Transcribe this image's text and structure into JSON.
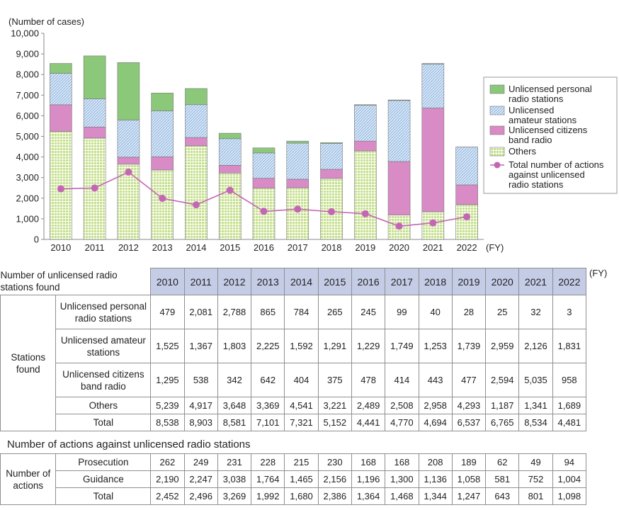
{
  "chart_data": {
    "type": "bar",
    "stacked": true,
    "unit_label": "(Number of cases)",
    "x_unit_label": "(FY)",
    "categories": [
      "2010",
      "2011",
      "2012",
      "2013",
      "2014",
      "2015",
      "2016",
      "2017",
      "2018",
      "2019",
      "2020",
      "2021",
      "2022"
    ],
    "ylim": [
      0,
      10000
    ],
    "yticks": [
      0,
      1000,
      2000,
      3000,
      4000,
      5000,
      6000,
      7000,
      8000,
      9000,
      10000
    ],
    "ytick_labels": [
      "0",
      "1,000",
      "2,000",
      "3,000",
      "4,000",
      "5,000",
      "6,000",
      "7,000",
      "8,000",
      "9,000",
      "10,000"
    ],
    "grid": false,
    "legend_position": "right",
    "series": [
      {
        "name": "Others",
        "key": "others",
        "color": "#c6e08e",
        "values": [
          5239,
          4917,
          3648,
          3369,
          4541,
          3221,
          2489,
          2508,
          2958,
          4293,
          1187,
          1341,
          1689
        ]
      },
      {
        "name": "Unlicensed citizens band radio",
        "key": "cb",
        "color": "#d88bc5",
        "values": [
          1295,
          538,
          342,
          642,
          404,
          375,
          478,
          414,
          443,
          477,
          2594,
          5035,
          958
        ]
      },
      {
        "name": "Unlicensed amateur stations",
        "key": "amateur",
        "color": "#cfe2f6",
        "values": [
          1525,
          1367,
          1803,
          2225,
          1592,
          1291,
          1229,
          1749,
          1253,
          1739,
          2959,
          2126,
          1831
        ]
      },
      {
        "name": "Unlicensed personal radio stations",
        "key": "personal",
        "color": "#8bc87a",
        "values": [
          479,
          2081,
          2788,
          865,
          784,
          265,
          245,
          99,
          40,
          28,
          25,
          32,
          3
        ]
      }
    ],
    "line_series": {
      "name": "Total number of actions against unlicensed radio stations",
      "color": "#c466b4",
      "values": [
        2452,
        2496,
        3269,
        1992,
        1680,
        2386,
        1364,
        1468,
        1344,
        1247,
        643,
        801,
        1098
      ]
    },
    "legend_order": [
      "personal",
      "amateur",
      "cb",
      "others",
      "line"
    ],
    "legend_labels": {
      "personal": [
        "Unlicensed personal",
        "radio stations"
      ],
      "amateur": [
        "Unlicensed",
        "amateur stations"
      ],
      "cb": [
        "Unlicensed citizens",
        "band radio"
      ],
      "others": [
        "Others"
      ],
      "line": [
        "Total number of actions",
        "against unlicensed",
        "radio stations"
      ]
    }
  },
  "table1": {
    "corner_label": "Number of unlicensed radio stations found",
    "unit": "(FY)",
    "years": [
      "2010",
      "2011",
      "2012",
      "2013",
      "2014",
      "2015",
      "2016",
      "2017",
      "2018",
      "2019",
      "2020",
      "2021",
      "2022"
    ],
    "group_label": "Stations found",
    "rows": [
      {
        "label": "Unlicensed personal radio stations",
        "values": [
          "479",
          "2,081",
          "2,788",
          "865",
          "784",
          "265",
          "245",
          "99",
          "40",
          "28",
          "25",
          "32",
          "3"
        ]
      },
      {
        "label": "Unlicensed amateur stations",
        "values": [
          "1,525",
          "1,367",
          "1,803",
          "2,225",
          "1,592",
          "1,291",
          "1,229",
          "1,749",
          "1,253",
          "1,739",
          "2,959",
          "2,126",
          "1,831"
        ]
      },
      {
        "label": "Unlicensed citizens band radio",
        "values": [
          "1,295",
          "538",
          "342",
          "642",
          "404",
          "375",
          "478",
          "414",
          "443",
          "477",
          "2,594",
          "5,035",
          "958"
        ]
      },
      {
        "label": "Others",
        "values": [
          "5,239",
          "4,917",
          "3,648",
          "3,369",
          "4,541",
          "3,221",
          "2,489",
          "2,508",
          "2,958",
          "4,293",
          "1,187",
          "1,341",
          "1,689"
        ]
      },
      {
        "label": "Total",
        "values": [
          "8,538",
          "8,903",
          "8,581",
          "7,101",
          "7,321",
          "5,152",
          "4,441",
          "4,770",
          "4,694",
          "6,537",
          "6,765",
          "8,534",
          "4,481"
        ]
      }
    ]
  },
  "table2": {
    "title": "Number of actions against unlicensed radio stations",
    "group_label": "Number of actions",
    "rows": [
      {
        "label": "Prosecution",
        "values": [
          "262",
          "249",
          "231",
          "228",
          "215",
          "230",
          "168",
          "168",
          "208",
          "189",
          "62",
          "49",
          "94"
        ]
      },
      {
        "label": "Guidance",
        "values": [
          "2,190",
          "2,247",
          "3,038",
          "1,764",
          "1,465",
          "2,156",
          "1,196",
          "1,300",
          "1,136",
          "1,058",
          "581",
          "752",
          "1,004"
        ]
      },
      {
        "label": "Total",
        "values": [
          "2,452",
          "2,496",
          "3,269",
          "1,992",
          "1,680",
          "2,386",
          "1,364",
          "1,468",
          "1,344",
          "1,247",
          "643",
          "801",
          "1,098"
        ]
      }
    ]
  }
}
